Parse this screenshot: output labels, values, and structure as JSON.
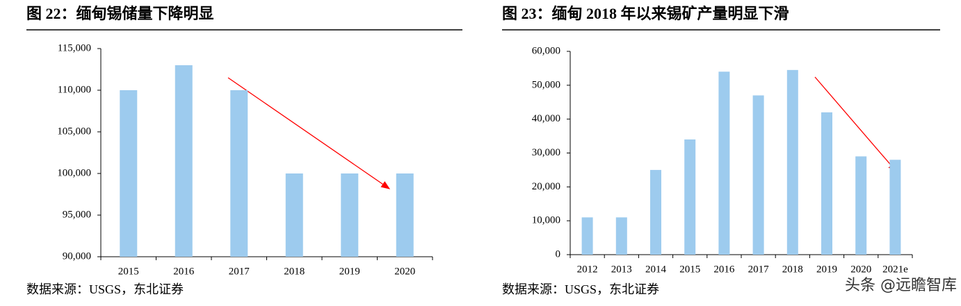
{
  "chart_data": [
    {
      "type": "bar",
      "title": "图 22：缅甸锡储量下降明显",
      "categories": [
        "2015",
        "2016",
        "2017",
        "2018",
        "2019",
        "2020"
      ],
      "values": [
        110000,
        113000,
        110000,
        100000,
        100000,
        100000
      ],
      "color": "#9dcbee",
      "ylim": [
        90000,
        115000
      ],
      "yticks": [
        {
          "value": 90000,
          "label": "90,000"
        },
        {
          "value": 95000,
          "label": "95,000"
        },
        {
          "value": 100000,
          "label": "100,000"
        },
        {
          "value": 105000,
          "label": "105,000"
        },
        {
          "value": 110000,
          "label": "110,000"
        },
        {
          "value": 115000,
          "label": "115,000"
        }
      ],
      "source": "数据来源：USGS，东北证券"
    },
    {
      "type": "bar",
      "title": "图 23：缅甸 2018 年以来锡矿产量明显下滑",
      "categories": [
        "2012",
        "2013",
        "2014",
        "2015",
        "2016",
        "2017",
        "2018",
        "2019",
        "2020",
        "2021e"
      ],
      "values": [
        11000,
        11000,
        25000,
        34000,
        54000,
        47000,
        54500,
        42000,
        29000,
        28000
      ],
      "color": "#9dcbee",
      "ylim": [
        0,
        60000
      ],
      "yticks": [
        0,
        {
          "value": 10000,
          "label": "10,000"
        },
        {
          "value": 20000,
          "label": "20,000"
        },
        {
          "value": 30000,
          "label": "30,000"
        },
        {
          "value": 40000,
          "label": "40,000"
        },
        {
          "value": 50000,
          "label": "50,000"
        },
        {
          "value": 60000,
          "label": "60,000"
        }
      ],
      "source": "数据来源：USGS，东北证券"
    }
  ],
  "watermark": "头条 @远瞻智库"
}
